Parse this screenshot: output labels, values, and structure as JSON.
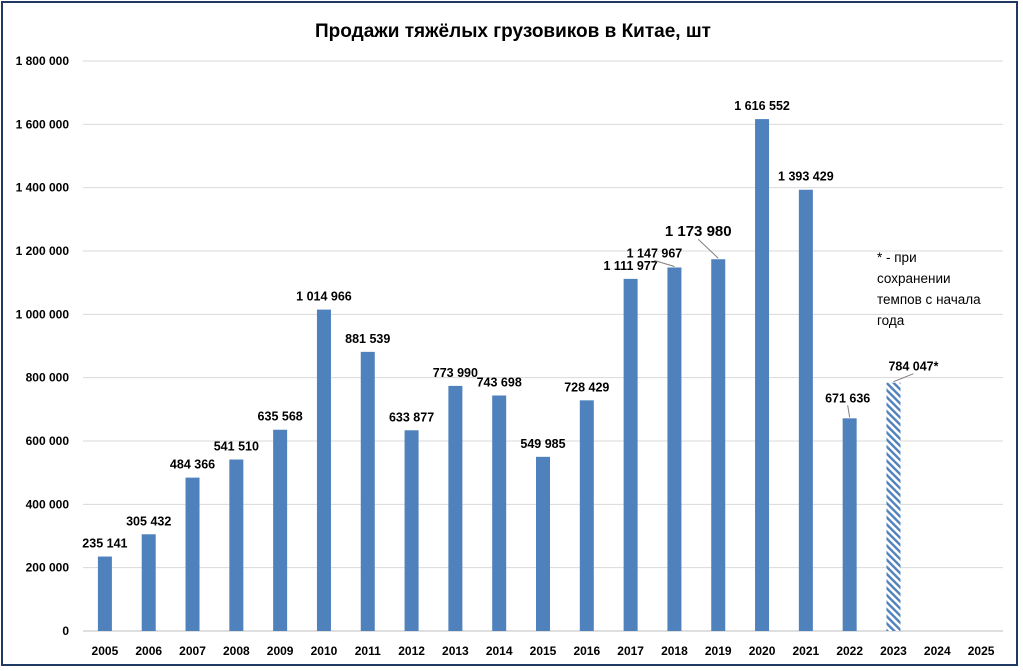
{
  "chart_data": {
    "type": "bar",
    "title": "Продажи тяжёлых грузовиков в Китае, шт",
    "xlabel": "",
    "ylabel": "",
    "ylim": [
      0,
      1800000
    ],
    "y_ticks": [
      "0",
      "200 000",
      "400 000",
      "600 000",
      "800 000",
      "1 000 000",
      "1 200 000",
      "1 400 000",
      "1 600 000",
      "1 800 000"
    ],
    "grid": true,
    "categories": [
      "2005",
      "2006",
      "2007",
      "2008",
      "2009",
      "2010",
      "2011",
      "2012",
      "2013",
      "2014",
      "2015",
      "2016",
      "2017",
      "2018",
      "2019",
      "2020",
      "2021",
      "2022",
      "2023",
      "2024",
      "2025"
    ],
    "values": [
      235141,
      305432,
      484366,
      541510,
      635568,
      1014966,
      881539,
      633877,
      773990,
      743698,
      549985,
      728429,
      1111977,
      1147967,
      1173980,
      1616552,
      1393429,
      671636,
      784047,
      null,
      null
    ],
    "data_labels": [
      "235 141",
      "305 432",
      "484 366",
      "541 510",
      "635 568",
      "1 014 966",
      "881 539",
      "633 877",
      "773 990",
      "743 698",
      "549 985",
      "728 429",
      "1 111 977",
      "1 147 967",
      "1 173 980",
      "1 616 552",
      "1 393 429",
      "671 636",
      "784 047*",
      "",
      ""
    ],
    "estimated": [
      false,
      false,
      false,
      false,
      false,
      false,
      false,
      false,
      false,
      false,
      false,
      false,
      false,
      false,
      false,
      false,
      false,
      false,
      true,
      false,
      false
    ],
    "note_lines": [
      "* - при",
      "сохранении",
      "темпов с начала",
      "года"
    ],
    "colors": {
      "bar": "#4f81bd",
      "estimate_hatch": "#4f81bd",
      "grid": "#d9d9d9",
      "frame": "#1f3864"
    }
  }
}
